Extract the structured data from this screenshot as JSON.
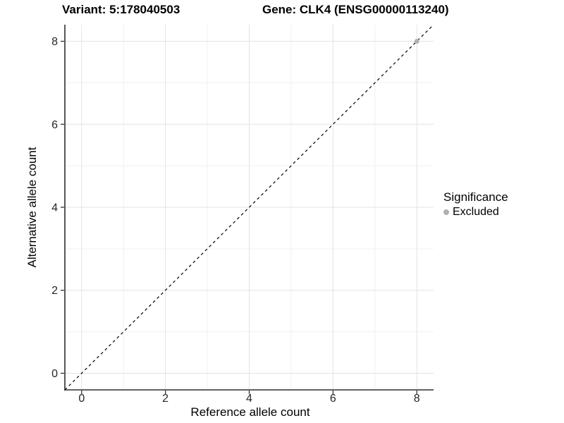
{
  "title": {
    "variant_label": "Variant: 5:178040503",
    "gene_label": "Gene: CLK4 (ENSG00000113240)"
  },
  "axes": {
    "x_label": "Reference allele count",
    "y_label": "Alternative allele count"
  },
  "legend": {
    "title": "Significance",
    "items": [
      {
        "label": "Excluded",
        "color": "#b0b0b0"
      }
    ]
  },
  "colors": {
    "grid_major": "#e3e3e3",
    "grid_minor": "#f0f0f0",
    "axis_line": "#2f2f2f",
    "tick_mark": "#333333",
    "tick_label": "#262626",
    "reference_line": "#000000",
    "point": "#b0b0b0",
    "background": "#ffffff"
  },
  "chart_data": {
    "type": "scatter",
    "title": "Variant: 5:178040503   Gene: CLK4 (ENSG00000113240)",
    "xlabel": "Reference allele count",
    "ylabel": "Alternative allele count",
    "xlim": [
      -0.4,
      8.4
    ],
    "ylim": [
      -0.4,
      8.4
    ],
    "x_ticks": [
      0,
      2,
      4,
      6,
      8
    ],
    "y_ticks": [
      0,
      2,
      4,
      6,
      8
    ],
    "x_minor_ticks": [
      1,
      3,
      5,
      7
    ],
    "y_minor_ticks": [
      1,
      3,
      5,
      7
    ],
    "grid": true,
    "legend_position": "right",
    "legend_title": "Significance",
    "series": [
      {
        "name": "Excluded",
        "color": "#b0b0b0",
        "points": [
          {
            "x": 8,
            "y": 8
          }
        ]
      }
    ],
    "reference_line": {
      "type": "identity",
      "style": "dashed",
      "from": [
        -0.4,
        -0.4
      ],
      "to": [
        8.4,
        8.4
      ],
      "color": "#000000"
    }
  }
}
